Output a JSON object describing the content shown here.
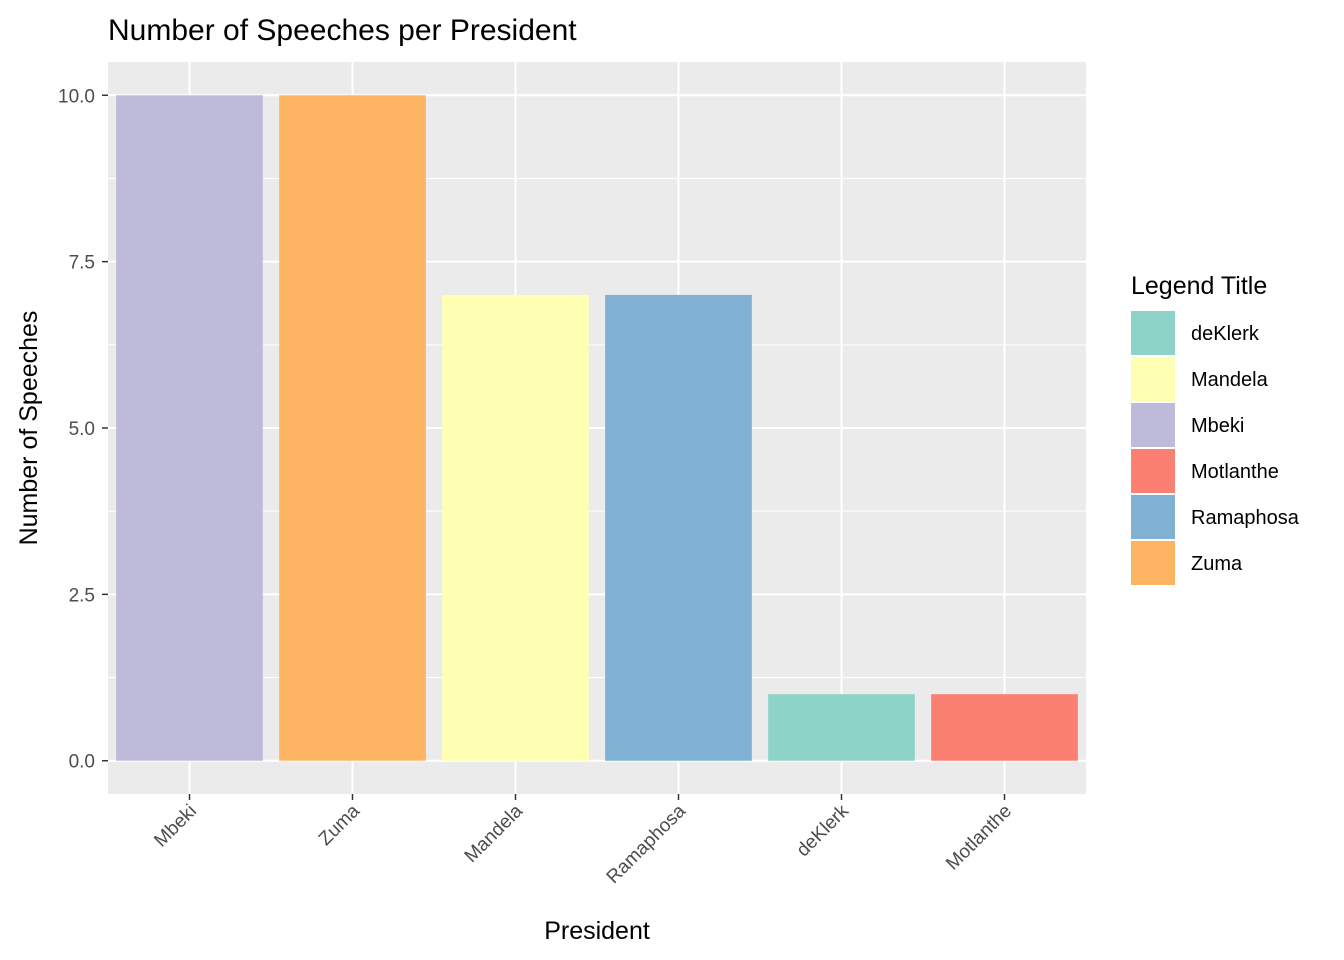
{
  "chart_data": {
    "type": "bar",
    "title": "Number of Speeches per President",
    "xlabel": "President",
    "ylabel": "Number of Speeches",
    "categories": [
      "Mbeki",
      "Zuma",
      "Mandela",
      "Ramaphosa",
      "deKlerk",
      "Motlanthe"
    ],
    "values": [
      10,
      10,
      7,
      7,
      1,
      1
    ],
    "ylim": [
      -0.5,
      10.5
    ],
    "yticks": [
      "0.0",
      "2.5",
      "5.0",
      "7.5",
      "10.0"
    ],
    "grid": true,
    "legend": {
      "title": "Legend Title",
      "placement": "right",
      "entries": [
        "deKlerk",
        "Mandela",
        "Mbeki",
        "Motlanthe",
        "Ramaphosa",
        "Zuma"
      ]
    },
    "colors": {
      "deKlerk": "#8DD3C7",
      "Mandela": "#FFFFB3",
      "Mbeki": "#BEBADA",
      "Motlanthe": "#FB8072",
      "Ramaphosa": "#80B1D3",
      "Zuma": "#FDB462"
    },
    "panel_background": "#EBEBEB"
  }
}
